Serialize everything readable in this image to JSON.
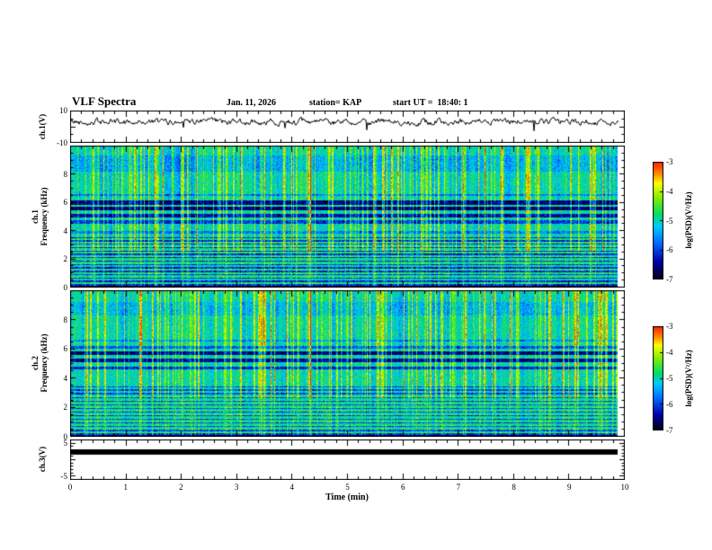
{
  "header": {
    "title": "VLF Spectra",
    "date": "Jan. 11, 2026",
    "station": "station= KAP",
    "start_ut": "start UT =  18:40: 1"
  },
  "xaxis": {
    "label": "Time (min)",
    "min": 0,
    "max": 10,
    "major_ticks": [
      0,
      1,
      2,
      3,
      4,
      5,
      6,
      7,
      8,
      9,
      10
    ],
    "minor_step": 0.2
  },
  "colorbar": {
    "label": "log(PSD)(V²/Hz)",
    "min": -7,
    "max": -3,
    "ticks": [
      -3,
      -4,
      -5,
      -6,
      -7
    ],
    "stops": [
      {
        "t": 0.0,
        "c": "#000012"
      },
      {
        "t": 0.15,
        "c": "#0000aa"
      },
      {
        "t": 0.3,
        "c": "#0066ff"
      },
      {
        "t": 0.45,
        "c": "#00ccff"
      },
      {
        "t": 0.55,
        "c": "#00dd66"
      },
      {
        "t": 0.7,
        "c": "#88ee00"
      },
      {
        "t": 0.82,
        "c": "#ffff00"
      },
      {
        "t": 0.9,
        "c": "#ff8800"
      },
      {
        "t": 1.0,
        "c": "#ff2200"
      }
    ]
  },
  "chart_data": [
    {
      "id": "ch1_voltage",
      "type": "line",
      "ylabel": "ch.1(V)",
      "ylim": [
        -10,
        10
      ],
      "yticks_labeled": [
        10,
        -10
      ],
      "ytick_minor": 5,
      "ytick_major": 10,
      "xlim": [
        0,
        10
      ],
      "baseline": 2.8,
      "smooth": 0.62,
      "jitter": 3.2,
      "dip_prob": 0.012,
      "seed": 42,
      "data_end": 9.9
    },
    {
      "id": "ch1_spectrogram",
      "type": "heatmap",
      "row_label": "ch.1",
      "ylabel": "Frequency (kHz)",
      "ylim": [
        0,
        10
      ],
      "yticks_labeled": [
        8,
        6,
        4,
        2,
        0
      ],
      "ytick_minor": 0.5,
      "ytick_major": 2,
      "xlim": [
        0,
        10
      ],
      "zlabel": "log(PSD)(V²/Hz)",
      "zlim": [
        -7,
        -3
      ],
      "base": -5.05,
      "noise": 0.45,
      "seed": 101,
      "data_end": 9.87,
      "streaks": 150,
      "streak_min": 0.5,
      "streak_max": 1.6,
      "stripe_region": {
        "f0": 0.12,
        "f1": 3.55,
        "period": 0.24,
        "dark": -1.1,
        "bright": 0.45
      },
      "bands": [
        {
          "f0": 0.0,
          "f1": 0.12,
          "delta": -1.8
        },
        {
          "f0": 3.8,
          "f1": 3.95,
          "delta": -0.7
        },
        {
          "f0": 4.5,
          "f1": 4.72,
          "delta": -1.1
        },
        {
          "f0": 4.95,
          "f1": 5.18,
          "delta": -1.4
        },
        {
          "f0": 5.42,
          "f1": 5.68,
          "delta": -1.7
        },
        {
          "f0": 5.85,
          "f1": 6.12,
          "delta": -1.6
        },
        {
          "f0": 6.45,
          "f1": 6.6,
          "delta": -0.7
        },
        {
          "f0": 8.2,
          "f1": 9.3,
          "delta": -0.35
        }
      ],
      "marker_streaks": [
        {
          "t": 4.33,
          "strength": 2.6
        },
        {
          "t": 7.08,
          "strength": 1.9
        }
      ]
    },
    {
      "id": "ch2_spectrogram",
      "type": "heatmap",
      "row_label": "ch.2",
      "ylabel": "Frequency (kHz)",
      "ylim": [
        0,
        10
      ],
      "yticks_labeled": [
        8,
        6,
        4,
        2,
        0
      ],
      "ytick_minor": 0.5,
      "ytick_major": 2,
      "xlim": [
        0,
        10
      ],
      "zlabel": "log(PSD)(V²/Hz)",
      "zlim": [
        -7,
        -3
      ],
      "base": -5.0,
      "noise": 0.45,
      "seed": 202,
      "data_end": 9.87,
      "streaks": 140,
      "streak_min": 0.5,
      "streak_max": 1.5,
      "stripe_region": {
        "f0": 0.12,
        "f1": 3.4,
        "period": 0.25,
        "dark": -1.0,
        "bright": 0.4
      },
      "bands": [
        {
          "f0": 0.0,
          "f1": 0.12,
          "delta": -1.8
        },
        {
          "f0": 4.6,
          "f1": 4.8,
          "delta": -1.2
        },
        {
          "f0": 5.1,
          "f1": 5.35,
          "delta": -1.5
        },
        {
          "f0": 5.6,
          "f1": 5.85,
          "delta": -1.6
        },
        {
          "f0": 6.0,
          "f1": 6.2,
          "delta": -0.9
        },
        {
          "f0": 6.5,
          "f1": 6.62,
          "delta": -0.6
        },
        {
          "f0": 8.3,
          "f1": 9.2,
          "delta": -0.3
        }
      ],
      "marker_streaks": [
        {
          "t": 4.33,
          "strength": 2.2
        },
        {
          "t": 7.6,
          "strength": 1.7
        }
      ]
    },
    {
      "id": "ch3_voltage",
      "type": "bar",
      "ylabel": "ch.3(V)",
      "ylim": [
        -6,
        6
      ],
      "yticks_labeled": [
        5,
        -5
      ],
      "ytick_minor": 1,
      "ytick_major": 5,
      "xlim": [
        0,
        10
      ],
      "value": 2.2,
      "half_width": 0.8,
      "data_end": 9.87
    }
  ]
}
